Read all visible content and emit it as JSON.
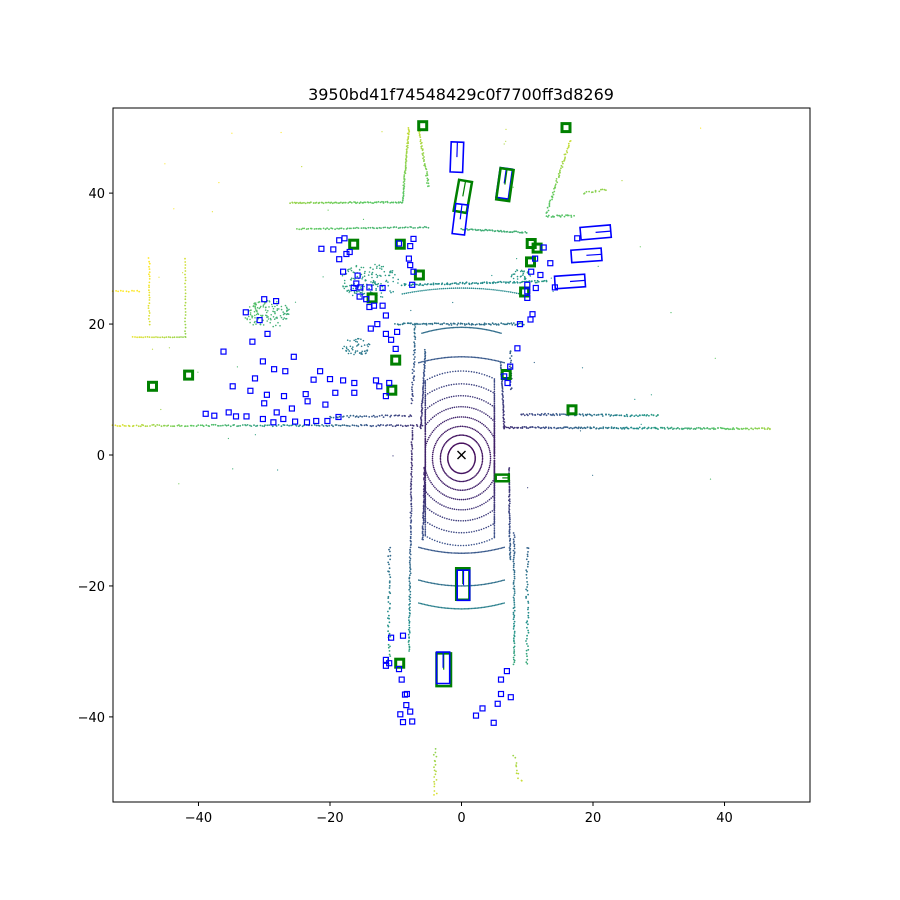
{
  "chart_data": {
    "type": "scatter",
    "title": "3950bd41f74548429c0f7700ff3d8269",
    "xlabel": "",
    "ylabel": "",
    "xlim": [
      -53,
      53
    ],
    "ylim": [
      -53,
      53
    ],
    "x_ticks": [
      -40,
      -20,
      0,
      20,
      40
    ],
    "y_ticks": [
      -40,
      -20,
      0,
      20,
      40
    ],
    "x_tick_labels": [
      "−40",
      "−20",
      "0",
      "20",
      "40"
    ],
    "y_tick_labels": [
      "−40",
      "−20",
      "0",
      "20",
      "40"
    ],
    "grid": false,
    "legend": "none",
    "colors": {
      "ground_truth_boxes": "#008000",
      "prediction_boxes": "#0000ff",
      "ego_marker": "#000000",
      "colormap": [
        "#440154",
        "#3b528b",
        "#21918c",
        "#5ec962",
        "#fde725"
      ]
    },
    "ego_marker": {
      "x": 0,
      "y": 0,
      "symbol": "x"
    },
    "vehicle_boxes": [
      {
        "kind": "prediction",
        "x": -0.7,
        "y": 45.5,
        "w": 1.9,
        "l": 4.6,
        "yaw": 88
      },
      {
        "kind": "prediction",
        "x": 6.5,
        "y": 41.5,
        "w": 1.9,
        "l": 4.6,
        "yaw": 82
      },
      {
        "kind": "ground_truth",
        "x": 6.6,
        "y": 41.3,
        "w": 2.0,
        "l": 4.8,
        "yaw": 82
      },
      {
        "kind": "ground_truth",
        "x": 0.2,
        "y": 39.5,
        "w": 2.0,
        "l": 4.8,
        "yaw": 80
      },
      {
        "kind": "prediction",
        "x": -0.2,
        "y": 36.0,
        "w": 1.9,
        "l": 4.6,
        "yaw": 83
      },
      {
        "kind": "prediction",
        "x": 20.4,
        "y": 34.0,
        "w": 1.9,
        "l": 4.6,
        "yaw": 5
      },
      {
        "kind": "prediction",
        "x": 19.0,
        "y": 30.5,
        "w": 1.9,
        "l": 4.6,
        "yaw": 4
      },
      {
        "kind": "prediction",
        "x": 16.5,
        "y": 26.5,
        "w": 1.9,
        "l": 4.6,
        "yaw": 4
      },
      {
        "kind": "ground_truth",
        "x": 0.2,
        "y": -19.7,
        "w": 2.0,
        "l": 4.8,
        "yaw": 90
      },
      {
        "kind": "prediction",
        "x": 0.3,
        "y": -19.9,
        "w": 1.9,
        "l": 4.6,
        "yaw": 90
      },
      {
        "kind": "ground_truth",
        "x": -2.7,
        "y": -32.8,
        "w": 2.2,
        "l": 5.0,
        "yaw": 90
      },
      {
        "kind": "prediction",
        "x": -2.8,
        "y": -32.5,
        "w": 2.0,
        "l": 4.8,
        "yaw": 90
      },
      {
        "kind": "ground_truth",
        "x": 6.2,
        "y": -3.5,
        "w": 1.0,
        "l": 2.0,
        "yaw": 0
      }
    ],
    "ground_truth_markers": [
      [
        -5.9,
        50.3
      ],
      [
        15.9,
        50.0
      ],
      [
        -9.3,
        32.2
      ],
      [
        -16.4,
        32.2
      ],
      [
        10.6,
        32.3
      ],
      [
        11.5,
        31.6
      ],
      [
        -6.4,
        27.5
      ],
      [
        10.5,
        29.5
      ],
      [
        9.6,
        24.9
      ],
      [
        -13.6,
        24.0
      ],
      [
        -10.0,
        14.5
      ],
      [
        -47.0,
        10.5
      ],
      [
        -41.5,
        12.2
      ],
      [
        -10.6,
        9.9
      ],
      [
        6.8,
        12.3
      ],
      [
        16.8,
        6.9
      ],
      [
        -9.4,
        -31.8
      ]
    ],
    "prediction_markers": [
      [
        -21.3,
        31.5
      ],
      [
        -18.6,
        32.8
      ],
      [
        -17.8,
        33.1
      ],
      [
        -7.3,
        33.0
      ],
      [
        -7.8,
        31.9
      ],
      [
        -19.5,
        31.4
      ],
      [
        -18.6,
        29.9
      ],
      [
        -17.0,
        31.0
      ],
      [
        -17.5,
        30.7
      ],
      [
        -9.5,
        32.3
      ],
      [
        -8.0,
        30.0
      ],
      [
        -7.8,
        29.0
      ],
      [
        -7.3,
        28.0
      ],
      [
        -18.0,
        28.0
      ],
      [
        -15.8,
        27.4
      ],
      [
        -16.0,
        26.2
      ],
      [
        -16.4,
        25.5
      ],
      [
        -15.4,
        25.6
      ],
      [
        -14.0,
        25.6
      ],
      [
        -12.0,
        25.5
      ],
      [
        -7.5,
        26.0
      ],
      [
        -15.5,
        24.2
      ],
      [
        -14.5,
        23.8
      ],
      [
        -14.0,
        22.6
      ],
      [
        -13.3,
        22.8
      ],
      [
        -12.0,
        22.8
      ],
      [
        -11.5,
        21.3
      ],
      [
        -12.8,
        20.0
      ],
      [
        -13.8,
        19.3
      ],
      [
        -11.5,
        18.5
      ],
      [
        -9.8,
        18.8
      ],
      [
        -10.7,
        17.6
      ],
      [
        -10.0,
        16.2
      ],
      [
        -30.0,
        23.8
      ],
      [
        -28.2,
        23.5
      ],
      [
        -32.8,
        21.8
      ],
      [
        -30.7,
        20.6
      ],
      [
        -29.5,
        18.5
      ],
      [
        -31.8,
        17.3
      ],
      [
        -36.2,
        15.8
      ],
      [
        -25.5,
        15.0
      ],
      [
        -30.2,
        14.3
      ],
      [
        -28.5,
        13.1
      ],
      [
        -26.8,
        12.8
      ],
      [
        -21.5,
        12.8
      ],
      [
        -22.5,
        11.5
      ],
      [
        -20.0,
        11.6
      ],
      [
        -18.0,
        11.4
      ],
      [
        -16.3,
        11.0
      ],
      [
        -13.0,
        11.4
      ],
      [
        -12.5,
        10.5
      ],
      [
        -11.0,
        11.0
      ],
      [
        -11.5,
        9.0
      ],
      [
        -31.4,
        11.7
      ],
      [
        -34.8,
        10.5
      ],
      [
        -32.1,
        9.8
      ],
      [
        -29.6,
        9.2
      ],
      [
        -27.0,
        9.0
      ],
      [
        -23.7,
        9.3
      ],
      [
        -19.2,
        9.5
      ],
      [
        -16.3,
        9.5
      ],
      [
        -20.7,
        7.7
      ],
      [
        -23.4,
        8.2
      ],
      [
        -25.8,
        7.1
      ],
      [
        -28.1,
        6.5
      ],
      [
        -30.0,
        7.9
      ],
      [
        -35.4,
        6.5
      ],
      [
        -38.9,
        6.3
      ],
      [
        -37.6,
        6.0
      ],
      [
        -34.3,
        5.9
      ],
      [
        -32.7,
        5.9
      ],
      [
        -30.2,
        5.5
      ],
      [
        -28.6,
        5.0
      ],
      [
        -27.1,
        5.5
      ],
      [
        -25.3,
        5.1
      ],
      [
        -23.5,
        5.0
      ],
      [
        -22.1,
        5.2
      ],
      [
        -20.4,
        5.2
      ],
      [
        -18.7,
        5.8
      ],
      [
        12.5,
        31.7
      ],
      [
        11.2,
        30.0
      ],
      [
        13.5,
        29.3
      ],
      [
        10.6,
        28.0
      ],
      [
        12.0,
        27.5
      ],
      [
        10.0,
        26.0
      ],
      [
        11.3,
        25.5
      ],
      [
        14.2,
        25.6
      ],
      [
        8.9,
        20.0
      ],
      [
        10.0,
        25.0
      ],
      [
        10.0,
        24.0
      ],
      [
        10.8,
        21.5
      ],
      [
        10.5,
        20.7
      ],
      [
        8.5,
        16.3
      ],
      [
        7.4,
        13.5
      ],
      [
        6.5,
        12.0
      ],
      [
        7.0,
        11.0
      ],
      [
        17.6,
        33.1
      ],
      [
        -10.7,
        -27.9
      ],
      [
        -8.9,
        -27.6
      ],
      [
        -11.5,
        -32.2
      ],
      [
        -11.0,
        -31.8
      ],
      [
        -11.5,
        -31.3
      ],
      [
        -9.5,
        -32.7
      ],
      [
        -9.1,
        -34.3
      ],
      [
        -8.3,
        -36.5
      ],
      [
        -8.6,
        -36.6
      ],
      [
        -8.4,
        -38.2
      ],
      [
        -9.3,
        -39.6
      ],
      [
        -8.9,
        -40.8
      ],
      [
        -7.5,
        -40.7
      ],
      [
        -7.8,
        -39.2
      ],
      [
        3.2,
        -38.7
      ],
      [
        2.2,
        -39.8
      ],
      [
        4.9,
        -40.9
      ],
      [
        6.0,
        -34.3
      ],
      [
        6.0,
        -36.5
      ],
      [
        7.5,
        -37.0
      ],
      [
        5.5,
        -38.0
      ],
      [
        6.9,
        -33.0
      ]
    ]
  }
}
